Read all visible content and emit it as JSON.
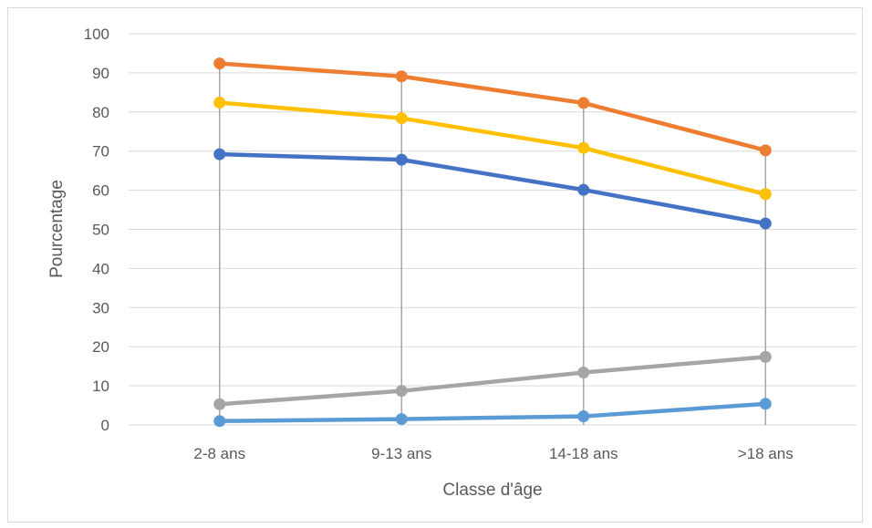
{
  "chart_data": {
    "type": "line",
    "title": "",
    "xlabel": "Classe d'âge",
    "ylabel": "Pourcentage",
    "categories": [
      "2-8 ans",
      "9-13 ans",
      "14-18 ans",
      ">18 ans"
    ],
    "ylim": [
      0,
      100
    ],
    "yticks": [
      0,
      10,
      20,
      30,
      40,
      50,
      60,
      70,
      80,
      90,
      100
    ],
    "grid": true,
    "drop_lines": true,
    "legend": "none",
    "series": [
      {
        "color": "#ED7D31",
        "values": [
          92.4,
          89.1,
          82.3,
          70.2
        ]
      },
      {
        "color": "#FFC000",
        "values": [
          82.4,
          78.4,
          70.8,
          59.0
        ]
      },
      {
        "color": "#4472C4",
        "values": [
          69.2,
          67.8,
          60.1,
          51.5
        ]
      },
      {
        "color": "#A5A5A5",
        "values": [
          5.3,
          8.7,
          13.4,
          17.4
        ]
      },
      {
        "color": "#5B9BD5",
        "values": [
          1.0,
          1.5,
          2.2,
          5.4
        ]
      }
    ]
  }
}
